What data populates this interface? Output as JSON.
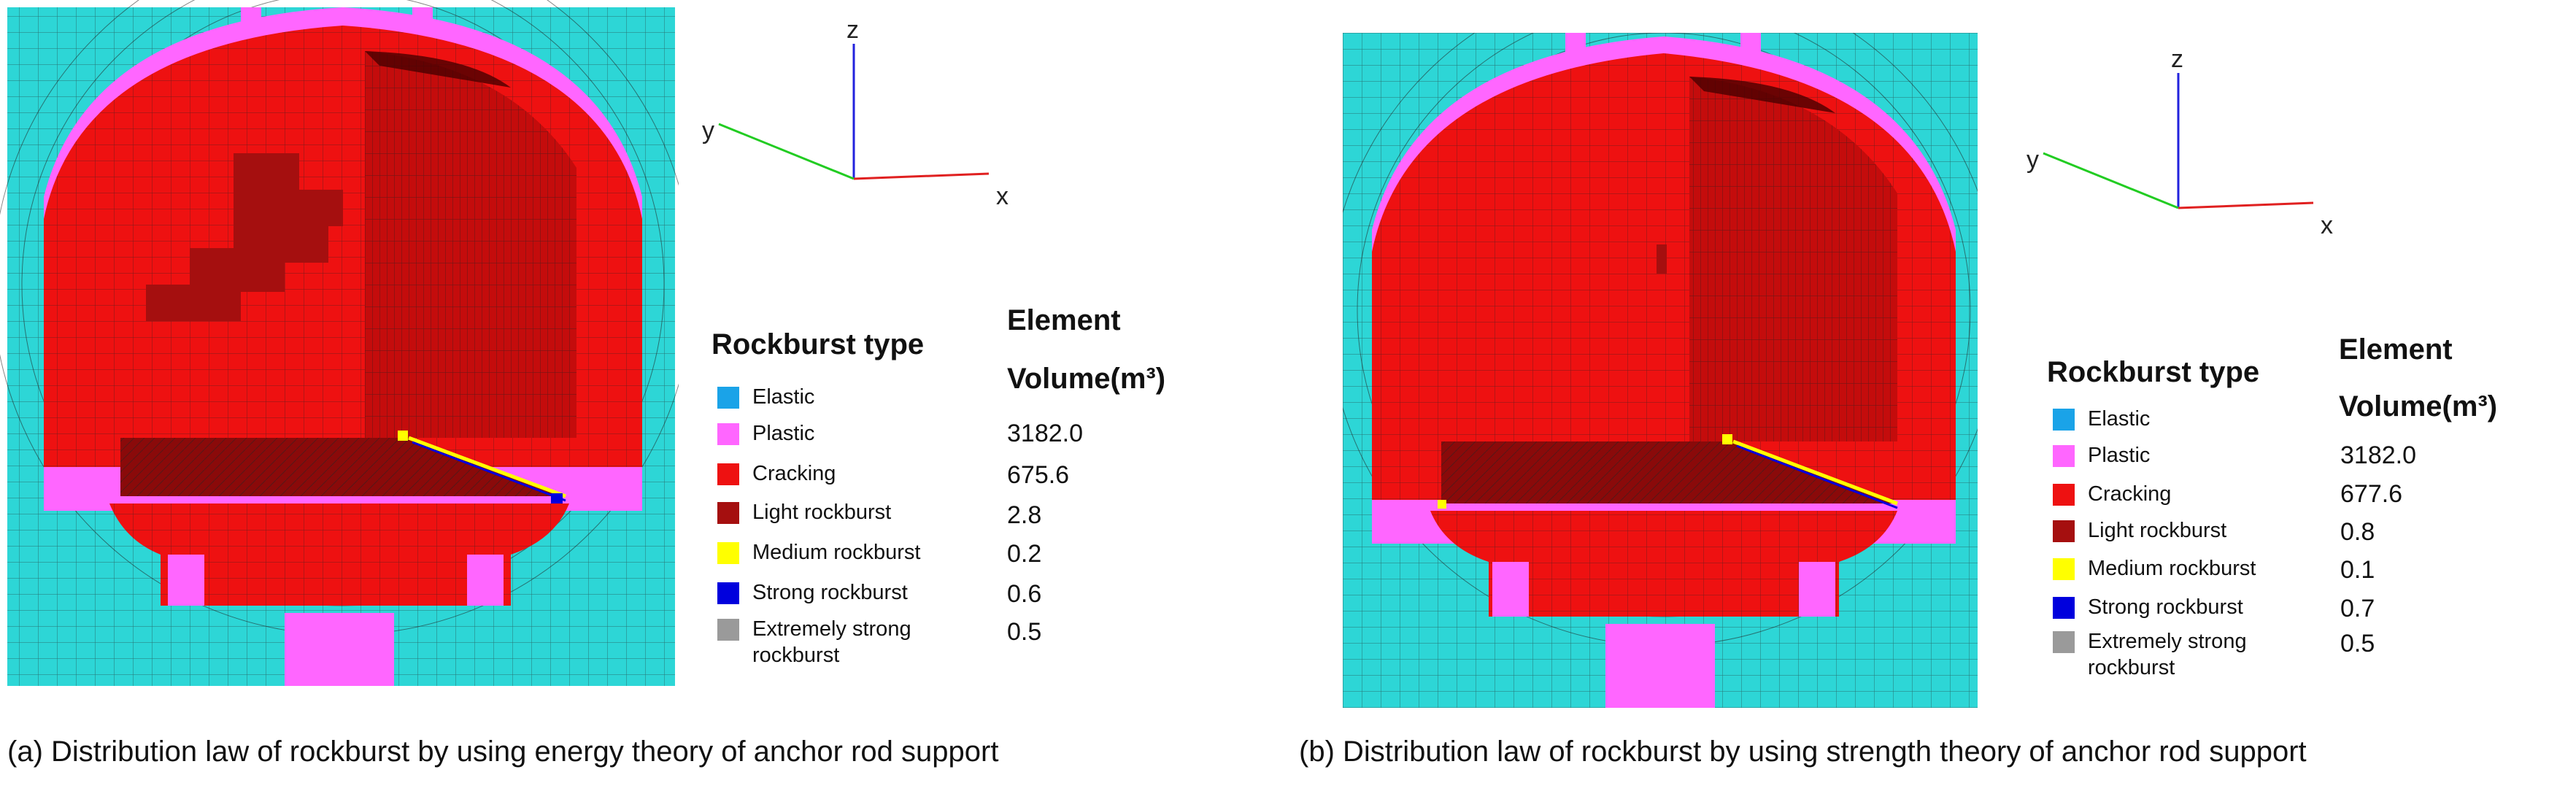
{
  "colors": {
    "elastic": "#1aa3e8",
    "plastic": "#ff66ff",
    "cracking": "#ee1111",
    "light_rockburst": "#a50f0f",
    "medium_rockburst": "#ffff00",
    "strong_rockburst": "#0000dd",
    "extremely_strong_rockburst": "#9a9a9a",
    "surrounding_rock": "#2dd6d6",
    "mesh_line": "#222222",
    "axis_x": "#e02020",
    "axis_y": "#22cc22",
    "axis_z": "#2222dd"
  },
  "panels": [
    {
      "caption": "(a) Distribution law of rockburst by using energy theory of anchor rod support",
      "axes": {
        "x": "x",
        "y": "y",
        "z": "z"
      },
      "legend": {
        "title": "Rockburst type",
        "volume_title_line1": "Element",
        "volume_title_line2": "Volume(m³)",
        "items": [
          {
            "icon": "elastic-swatch",
            "label": "Elastic",
            "volume": ""
          },
          {
            "icon": "plastic-swatch",
            "label": "Plastic",
            "volume": "3182.0"
          },
          {
            "icon": "cracking-swatch",
            "label": "Cracking",
            "volume": "675.6"
          },
          {
            "icon": "light-rockburst-swatch",
            "label": "Light rockburst",
            "volume": "2.8"
          },
          {
            "icon": "medium-rockburst-swatch",
            "label": "Medium rockburst",
            "volume": "0.2"
          },
          {
            "icon": "strong-rockburst-swatch",
            "label": "Strong rockburst",
            "volume": "0.6"
          },
          {
            "icon": "extremely-strong-rockburst-swatch",
            "label": "Extremely strong",
            "label2": "rockburst",
            "volume": "0.5"
          }
        ]
      }
    },
    {
      "caption": "(b) Distribution law of rockburst by using strength theory of anchor rod support",
      "axes": {
        "x": "x",
        "y": "y",
        "z": "z"
      },
      "legend": {
        "title": "Rockburst type",
        "volume_title_line1": "Element",
        "volume_title_line2": "Volume(m³)",
        "items": [
          {
            "icon": "elastic-swatch",
            "label": "Elastic",
            "volume": ""
          },
          {
            "icon": "plastic-swatch",
            "label": "Plastic",
            "volume": "3182.0"
          },
          {
            "icon": "cracking-swatch",
            "label": "Cracking",
            "volume": "677.6"
          },
          {
            "icon": "light-rockburst-swatch",
            "label": "Light rockburst",
            "volume": "0.8"
          },
          {
            "icon": "medium-rockburst-swatch",
            "label": "Medium rockburst",
            "volume": "0.1"
          },
          {
            "icon": "strong-rockburst-swatch",
            "label": "Strong rockburst",
            "volume": "0.7"
          },
          {
            "icon": "extremely-strong-rockburst-swatch",
            "label": "Extremely strong",
            "label2": "rockburst",
            "volume": "0.5"
          }
        ]
      }
    }
  ]
}
